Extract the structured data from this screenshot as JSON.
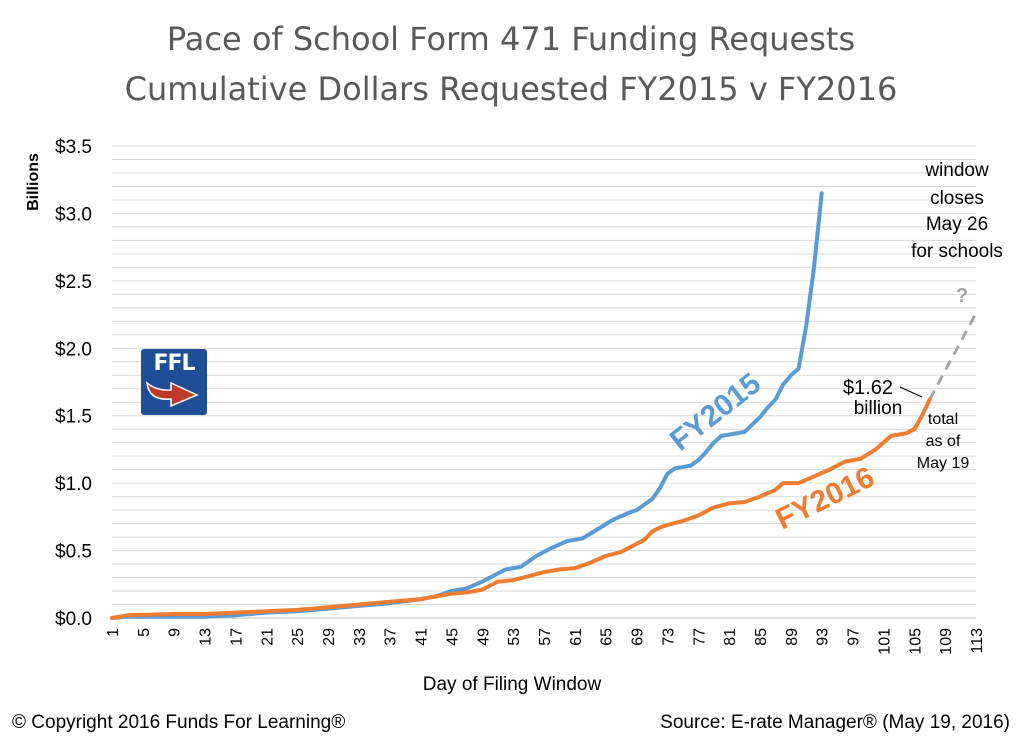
{
  "title": "Pace of School Form 471 Funding Requests",
  "subtitle": "Cumulative Dollars Requested FY2015 v FY2016",
  "footer": {
    "copyright": "© Copyright 2016 Funds For Learning®",
    "source": "Source: E-rate Manager® (May 19, 2016)"
  },
  "logo": {
    "text": "FFL",
    "icon": "ffl-logo-arrow-icon"
  },
  "colors": {
    "fy2015": "#5b9bd5",
    "fy2016": "#ed7d31",
    "projection": "#a6a6a6",
    "grid": "#d9d9d9"
  },
  "chart_data": {
    "type": "line",
    "xlabel": "Day of Filing Window",
    "ylabel": "Billions",
    "xlim": [
      1,
      113
    ],
    "ylim": [
      0,
      3.5
    ],
    "x_ticks": [
      1,
      5,
      9,
      13,
      17,
      21,
      25,
      29,
      33,
      37,
      41,
      45,
      49,
      53,
      57,
      61,
      65,
      69,
      73,
      77,
      81,
      85,
      89,
      93,
      97,
      101,
      105,
      109,
      113
    ],
    "y_ticks": [
      {
        "value": 0,
        "label": "$0.0"
      },
      {
        "value": 0.5,
        "label": "$0.5"
      },
      {
        "value": 1.0,
        "label": "$1.0"
      },
      {
        "value": 1.5,
        "label": "$1.5"
      },
      {
        "value": 2.0,
        "label": "$2.0"
      },
      {
        "value": 2.5,
        "label": "$2.5"
      },
      {
        "value": 3.0,
        "label": "$3.0"
      },
      {
        "value": 3.5,
        "label": "$3.5"
      }
    ],
    "grid": true,
    "series": [
      {
        "name": "FY2015",
        "points": [
          [
            1,
            0
          ],
          [
            3,
            0.01
          ],
          [
            9,
            0.01
          ],
          [
            13,
            0.01
          ],
          [
            17,
            0.02
          ],
          [
            21,
            0.04
          ],
          [
            25,
            0.05
          ],
          [
            29,
            0.07
          ],
          [
            33,
            0.09
          ],
          [
            37,
            0.11
          ],
          [
            41,
            0.14
          ],
          [
            43,
            0.16
          ],
          [
            45,
            0.2
          ],
          [
            47,
            0.22
          ],
          [
            49,
            0.27
          ],
          [
            50,
            0.3
          ],
          [
            52,
            0.36
          ],
          [
            54,
            0.38
          ],
          [
            56,
            0.46
          ],
          [
            58,
            0.52
          ],
          [
            60,
            0.57
          ],
          [
            62,
            0.59
          ],
          [
            64,
            0.66
          ],
          [
            66,
            0.73
          ],
          [
            68,
            0.78
          ],
          [
            69,
            0.8
          ],
          [
            71,
            0.88
          ],
          [
            72,
            0.96
          ],
          [
            73,
            1.07
          ],
          [
            74,
            1.11
          ],
          [
            76,
            1.13
          ],
          [
            77,
            1.17
          ],
          [
            78,
            1.23
          ],
          [
            79,
            1.3
          ],
          [
            80,
            1.35
          ],
          [
            81,
            1.36
          ],
          [
            83,
            1.38
          ],
          [
            85,
            1.49
          ],
          [
            86,
            1.56
          ],
          [
            87,
            1.62
          ],
          [
            88,
            1.73
          ],
          [
            89,
            1.8
          ],
          [
            90,
            1.85
          ],
          [
            91,
            2.17
          ],
          [
            92,
            2.6
          ],
          [
            93,
            3.15
          ]
        ]
      },
      {
        "name": "FY2016",
        "points": [
          [
            1,
            0
          ],
          [
            3,
            0.02
          ],
          [
            9,
            0.03
          ],
          [
            13,
            0.03
          ],
          [
            17,
            0.04
          ],
          [
            21,
            0.05
          ],
          [
            25,
            0.06
          ],
          [
            29,
            0.08
          ],
          [
            33,
            0.1
          ],
          [
            37,
            0.12
          ],
          [
            41,
            0.14
          ],
          [
            43,
            0.16
          ],
          [
            45,
            0.18
          ],
          [
            47,
            0.19
          ],
          [
            49,
            0.21
          ],
          [
            51,
            0.27
          ],
          [
            53,
            0.28
          ],
          [
            55,
            0.31
          ],
          [
            57,
            0.34
          ],
          [
            59,
            0.36
          ],
          [
            61,
            0.37
          ],
          [
            63,
            0.41
          ],
          [
            65,
            0.46
          ],
          [
            67,
            0.49
          ],
          [
            68,
            0.52
          ],
          [
            70,
            0.58
          ],
          [
            71,
            0.64
          ],
          [
            72,
            0.67
          ],
          [
            73,
            0.69
          ],
          [
            75,
            0.72
          ],
          [
            77,
            0.76
          ],
          [
            79,
            0.82
          ],
          [
            81,
            0.85
          ],
          [
            83,
            0.86
          ],
          [
            85,
            0.9
          ],
          [
            87,
            0.95
          ],
          [
            88,
            1.0
          ],
          [
            90,
            1.0
          ],
          [
            92,
            1.05
          ],
          [
            94,
            1.1
          ],
          [
            96,
            1.16
          ],
          [
            98,
            1.18
          ],
          [
            100,
            1.25
          ],
          [
            102,
            1.35
          ],
          [
            104,
            1.37
          ],
          [
            105,
            1.4
          ],
          [
            106,
            1.5
          ],
          [
            107,
            1.62
          ]
        ]
      }
    ],
    "projection": {
      "from": [
        107,
        1.62
      ],
      "to": [
        113,
        2.26
      ],
      "label": "?"
    },
    "series_labels": [
      {
        "text": "FY2015",
        "series": "FY2015"
      },
      {
        "text": "FY2016",
        "series": "FY2016"
      }
    ],
    "annotations": {
      "current_value": "$1.62",
      "current_unit": "billion",
      "as_of": [
        "total",
        "as of",
        "May 19"
      ],
      "window_close": [
        "window",
        "closes",
        "May 26",
        "for schools"
      ]
    }
  }
}
